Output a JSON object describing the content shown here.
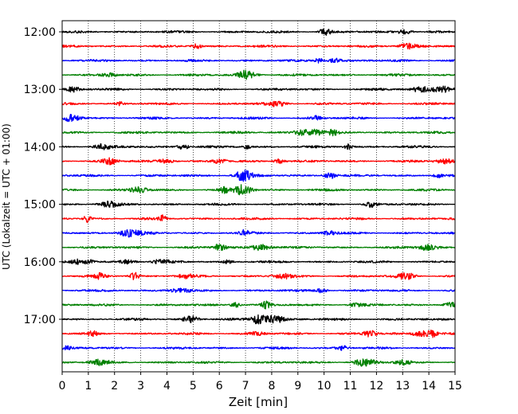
{
  "chart_data": {
    "type": "line",
    "title": "",
    "xlabel": "Zeit  [min]",
    "ylabel": "UTC (Lokalzeit = UTC + 01:00)",
    "xlim": [
      0,
      15
    ],
    "x_ticks": [
      0,
      1,
      2,
      3,
      4,
      5,
      6,
      7,
      8,
      9,
      10,
      11,
      12,
      13,
      14,
      15
    ],
    "x_tick_labels": [
      "0",
      "1",
      "2",
      "3",
      "4",
      "5",
      "6",
      "7",
      "8",
      "9",
      "10",
      "11",
      "12",
      "13",
      "14",
      "15"
    ],
    "y_tick_labels": [
      {
        "label": "12:00",
        "trace_index": 0
      },
      {
        "label": "13:00",
        "trace_index": 4
      },
      {
        "label": "14:00",
        "trace_index": 8
      },
      {
        "label": "15:00",
        "trace_index": 12
      },
      {
        "label": "16:00",
        "trace_index": 16
      },
      {
        "label": "17:00",
        "trace_index": 20
      }
    ],
    "vertical_grid": true,
    "grid_style": "dotted",
    "trace_interval_min": 15,
    "trace_count": 24,
    "trace_colors": [
      "#000000",
      "#ff0000",
      "#0000ff",
      "#008000"
    ]
  }
}
